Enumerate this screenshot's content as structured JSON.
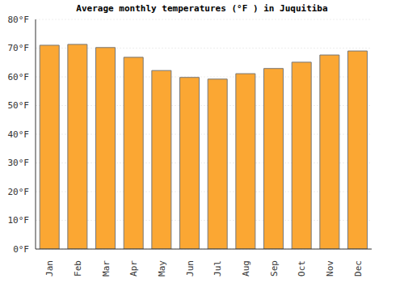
{
  "chart_data": {
    "type": "bar",
    "title": "Average monthly temperatures (°F ) in Juquitiba",
    "categories": [
      "Jan",
      "Feb",
      "Mar",
      "Apr",
      "May",
      "Jun",
      "Jul",
      "Aug",
      "Sep",
      "Oct",
      "Nov",
      "Dec"
    ],
    "values": [
      71.0,
      71.3,
      70.2,
      66.8,
      62.2,
      59.8,
      59.2,
      61.1,
      62.9,
      65.1,
      67.6,
      69.0
    ],
    "color": "#fba733",
    "ylim": [
      0,
      80
    ],
    "yticks": [
      {
        "value": 0,
        "label": "0°F"
      },
      {
        "value": 10,
        "label": "10°F"
      },
      {
        "value": 20,
        "label": "20°F"
      },
      {
        "value": 30,
        "label": "30°F"
      },
      {
        "value": 40,
        "label": "40°F"
      },
      {
        "value": 50,
        "label": "50°F"
      },
      {
        "value": 60,
        "label": "60°F"
      },
      {
        "value": 70,
        "label": "70°F"
      },
      {
        "value": 80,
        "label": "80°F"
      }
    ],
    "grid": true
  }
}
